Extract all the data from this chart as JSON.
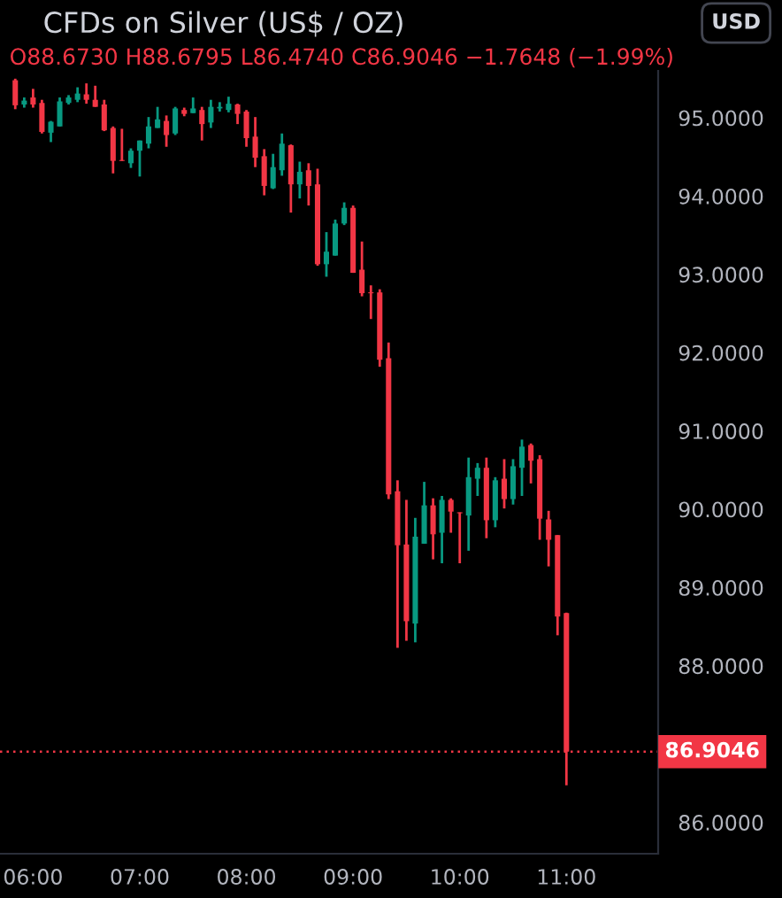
{
  "chart_data": {
    "type": "candlestick",
    "title": "CFDs on Silver (US$ / OZ)",
    "subtitle": "O88.6730 H88.6795 L86.4740 C86.9046 −1.7648 (−1.99%)",
    "annotations": [
      "USD"
    ],
    "x": [
      5.833,
      5.917,
      6,
      6.083,
      6.167,
      6.25,
      6.333,
      6.417,
      6.5,
      6.583,
      6.667,
      6.75,
      6.833,
      6.917,
      7,
      7.083,
      7.167,
      7.25,
      7.333,
      7.417,
      7.5,
      7.583,
      7.667,
      7.75,
      7.833,
      7.917,
      8,
      8.083,
      8.167,
      8.25,
      8.333,
      8.417,
      8.5,
      8.583,
      8.667,
      8.75,
      8.833,
      8.917,
      9,
      9.083,
      9.167,
      9.25,
      9.333,
      9.417,
      9.5,
      9.583,
      9.667,
      9.75,
      9.833,
      9.917,
      10,
      10.083,
      10.167,
      10.25,
      10.333,
      10.417,
      10.5,
      10.583,
      10.667,
      10.75,
      10.833,
      10.917,
      11
    ],
    "ohlc": [
      [
        95.48,
        95.5,
        95.11,
        95.16
      ],
      [
        95.17,
        95.26,
        95.13,
        95.22
      ],
      [
        95.26,
        95.37,
        95.13,
        95.17
      ],
      [
        95.19,
        95.23,
        94.8,
        94.82
      ],
      [
        94.81,
        94.96,
        94.69,
        94.95
      ],
      [
        94.89,
        95.26,
        94.89,
        95.21
      ],
      [
        95.19,
        95.29,
        95.17,
        95.26
      ],
      [
        95.23,
        95.39,
        95.2,
        95.31
      ],
      [
        95.3,
        95.44,
        95.18,
        95.23
      ],
      [
        95.23,
        95.41,
        95.14,
        95.14
      ],
      [
        95.17,
        95.23,
        94.83,
        94.84
      ],
      [
        94.87,
        94.89,
        94.29,
        94.45
      ],
      [
        94.46,
        94.86,
        94.45,
        94.45
      ],
      [
        94.42,
        94.61,
        94.36,
        94.58
      ],
      [
        94.58,
        94.71,
        94.25,
        94.71
      ],
      [
        94.67,
        95.01,
        94.61,
        94.89
      ],
      [
        94.87,
        95.14,
        94.87,
        94.98
      ],
      [
        94.96,
        95.03,
        94.63,
        94.78
      ],
      [
        94.8,
        95.14,
        94.78,
        95.12
      ],
      [
        95.1,
        95.13,
        95.02,
        95.05
      ],
      [
        95.06,
        95.26,
        95.06,
        95.12
      ],
      [
        95.1,
        95.14,
        94.71,
        94.92
      ],
      [
        94.94,
        95.23,
        94.87,
        95.14
      ],
      [
        95.12,
        95.2,
        95.08,
        95.14
      ],
      [
        95.1,
        95.27,
        95.07,
        95.18
      ],
      [
        95.17,
        95.18,
        94.92,
        95.05
      ],
      [
        95.08,
        95.1,
        94.63,
        94.74
      ],
      [
        94.76,
        95.01,
        94.37,
        94.49
      ],
      [
        94.51,
        94.6,
        94.01,
        94.13
      ],
      [
        94.1,
        94.54,
        94.09,
        94.37
      ],
      [
        94.33,
        94.8,
        94.26,
        94.67
      ],
      [
        94.65,
        94.66,
        93.79,
        94.15
      ],
      [
        94.15,
        94.44,
        93.97,
        94.31
      ],
      [
        94.33,
        94.42,
        93.88,
        94.13
      ],
      [
        94.15,
        94.35,
        93.11,
        93.13
      ],
      [
        93.13,
        93.54,
        92.97,
        93.29
      ],
      [
        93.24,
        93.7,
        93.24,
        93.65
      ],
      [
        93.65,
        93.92,
        93.63,
        93.85
      ],
      [
        93.85,
        93.88,
        93.02,
        93.02
      ],
      [
        93.06,
        93.42,
        92.72,
        92.76
      ],
      [
        92.77,
        92.86,
        92.43,
        92.76
      ],
      [
        92.77,
        92.81,
        91.82,
        91.91
      ],
      [
        91.93,
        92.13,
        90.13,
        90.19
      ],
      [
        90.23,
        90.37,
        88.23,
        89.54
      ],
      [
        89.55,
        90.12,
        88.32,
        88.57
      ],
      [
        88.54,
        89.89,
        88.3,
        89.65
      ],
      [
        89.56,
        90.35,
        89.56,
        90.05
      ],
      [
        90.05,
        90.14,
        89.36,
        89.68
      ],
      [
        89.7,
        90.17,
        89.31,
        90.12
      ],
      [
        90.12,
        90.14,
        89.7,
        89.97
      ],
      [
        89.96,
        89.96,
        89.31,
        89.95
      ],
      [
        89.92,
        90.66,
        89.47,
        90.41
      ],
      [
        90.39,
        90.59,
        90.17,
        90.53
      ],
      [
        90.53,
        90.66,
        89.63,
        89.86
      ],
      [
        89.86,
        90.41,
        89.77,
        90.37
      ],
      [
        90.39,
        90.64,
        90.01,
        90.13
      ],
      [
        90.13,
        90.64,
        90.06,
        90.55
      ],
      [
        90.53,
        90.89,
        90.17,
        90.8
      ],
      [
        90.82,
        90.84,
        90.33,
        90.62
      ],
      [
        90.64,
        90.69,
        89.61,
        89.88
      ],
      [
        89.87,
        89.98,
        89.27,
        89.61
      ],
      [
        89.67,
        89.67,
        88.39,
        88.63
      ],
      [
        88.673,
        88.6795,
        86.474,
        86.9046
      ]
    ],
    "colors": [
      "#f23645",
      "#089981",
      "#f23645",
      "#f23645",
      "#089981",
      "#089981",
      "#089981",
      "#089981",
      "#f23645",
      "#f23645",
      "#f23645",
      "#f23645",
      "#f23645",
      "#089981",
      "#089981",
      "#089981",
      "#089981",
      "#f23645",
      "#089981",
      "#f23645",
      "#089981",
      "#f23645",
      "#089981",
      "#089981",
      "#089981",
      "#f23645",
      "#f23645",
      "#f23645",
      "#f23645",
      "#089981",
      "#089981",
      "#f23645",
      "#089981",
      "#f23645",
      "#f23645",
      "#089981",
      "#089981",
      "#089981",
      "#f23645",
      "#f23645",
      "#f23645",
      "#f23645",
      "#f23645",
      "#f23645",
      "#f23645",
      "#089981",
      "#089981",
      "#f23645",
      "#089981",
      "#f23645",
      "#f23645",
      "#089981",
      "#089981",
      "#f23645",
      "#089981",
      "#f23645",
      "#089981",
      "#089981",
      "#f23645",
      "#f23645",
      "#f23645",
      "#f23645",
      "#f23645"
    ],
    "xlim": [
      5.69,
      11.86
    ],
    "xticks": [
      {
        "value": 6,
        "label": "06:00"
      },
      {
        "value": 7,
        "label": "07:00"
      },
      {
        "value": 8,
        "label": "08:00"
      },
      {
        "value": 9,
        "label": "09:00"
      },
      {
        "value": 10,
        "label": "10:00"
      },
      {
        "value": 11,
        "label": "11:00"
      }
    ],
    "ylim": [
      85.6,
      95.6
    ],
    "yticks": [
      {
        "value": 86,
        "label": "86.0000"
      },
      {
        "value": 88,
        "label": "88.0000"
      },
      {
        "value": 89,
        "label": "89.0000"
      },
      {
        "value": 90,
        "label": "90.0000"
      },
      {
        "value": 91,
        "label": "91.0000"
      },
      {
        "value": 92,
        "label": "92.0000"
      },
      {
        "value": 93,
        "label": "93.0000"
      },
      {
        "value": 94,
        "label": "94.0000"
      },
      {
        "value": 95,
        "label": "95.0000"
      }
    ],
    "ref_lines": [
      {
        "axis": "y",
        "value": 86.9046,
        "label": "86.9046",
        "color": "#f23645",
        "line_style": "dotted"
      }
    ],
    "grid": false,
    "legend": false
  }
}
